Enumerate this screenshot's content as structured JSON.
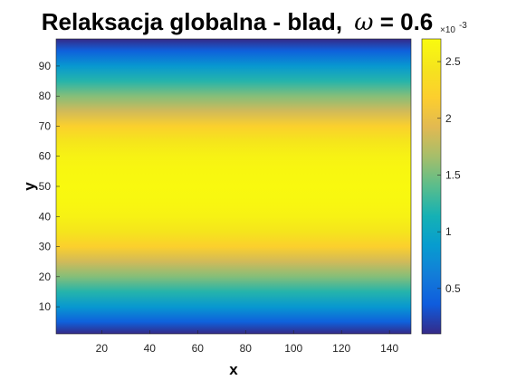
{
  "chart_data": {
    "type": "heatmap",
    "title_main": "Relaksacja globalna - blad,",
    "title_symbol": "ω",
    "title_rest": " = 0.6",
    "xlabel": "x",
    "ylabel": "y",
    "xlim": [
      1,
      149
    ],
    "ylim": [
      1,
      99
    ],
    "x_ticks": [
      20,
      40,
      60,
      80,
      100,
      120,
      140
    ],
    "y_ticks": [
      10,
      20,
      30,
      40,
      50,
      60,
      70,
      80,
      90
    ],
    "colorbar": {
      "colormap": "parula",
      "clim": [
        0.1,
        2.7
      ],
      "ticks": [
        0.5,
        1,
        1.5,
        2,
        2.5
      ],
      "tick_labels": [
        "0.5",
        "1",
        "1.5",
        "2",
        "2.5"
      ],
      "exponent_base": "×10",
      "exponent_power": "-3"
    },
    "field": {
      "description_units": "x10^-3",
      "profile_y": [
        1,
        5,
        10,
        15,
        20,
        25,
        30,
        35,
        40,
        45,
        50,
        55,
        60,
        65,
        70,
        75,
        80,
        85,
        90,
        95,
        99
      ],
      "profile_values": [
        0.1,
        0.4,
        0.85,
        1.2,
        1.55,
        1.85,
        2.2,
        2.45,
        2.6,
        2.66,
        2.68,
        2.66,
        2.6,
        2.45,
        2.2,
        1.85,
        1.55,
        1.2,
        0.85,
        0.4,
        0.1
      ]
    }
  }
}
